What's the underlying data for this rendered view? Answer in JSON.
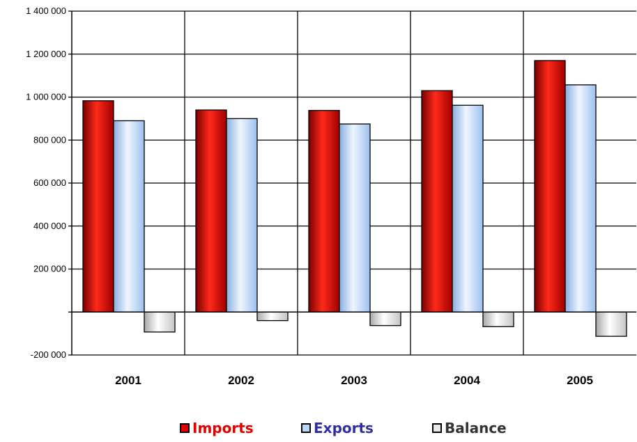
{
  "chart_data": {
    "type": "bar",
    "categories": [
      "2001",
      "2002",
      "2003",
      "2004",
      "2005"
    ],
    "series": [
      {
        "name": "Imports",
        "values": [
          983000,
          940000,
          938000,
          1030000,
          1170000
        ],
        "color": "#e00000"
      },
      {
        "name": "Exports",
        "values": [
          890000,
          900000,
          875000,
          962000,
          1057000
        ],
        "color": "#b8d8ff"
      },
      {
        "name": "Balance",
        "values": [
          -93000,
          -40000,
          -63000,
          -68000,
          -113000
        ],
        "color": "#e8e8e8"
      }
    ],
    "yticks": [
      -200000,
      0,
      200000,
      400000,
      600000,
      800000,
      1000000,
      1200000,
      1400000
    ],
    "ytick_labels": [
      "-200 000",
      "",
      "200 000",
      "400 000",
      "600 000",
      "800 000",
      "1 000 000",
      "1 200 000",
      "1 400 000"
    ],
    "ylim": [
      -200000,
      1400000
    ],
    "grid": true,
    "legend_position": "bottom",
    "legend_text_colors": [
      "#e00000",
      "#2f2fa0",
      "#333333"
    ]
  }
}
